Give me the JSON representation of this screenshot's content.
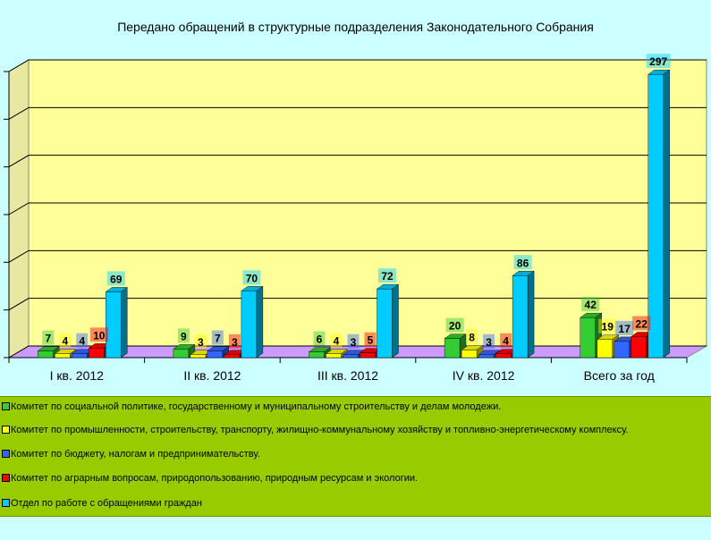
{
  "chart_data": {
    "type": "bar",
    "title": "Передано обращений в структурные подразделения Законодательного Собрания",
    "categories": [
      "I кв. 2012",
      "II кв. 2012",
      "III кв. 2012",
      "IV кв. 2012",
      "Всего за год"
    ],
    "ylim": [
      0,
      300
    ],
    "grid": true,
    "legend_position": "bottom",
    "series": [
      {
        "name": "Комитет по социальной политике, государственному и муниципальному строительству  и делам молодежи.",
        "color": "#33cc33",
        "values": [
          7,
          9,
          6,
          20,
          42
        ]
      },
      {
        "name": "Комитет по промышленности, строительству, транспорту, жилищно-коммунальному хозяйству и топливно-энергетическому комплексу.",
        "color": "#ffff00",
        "values": [
          4,
          3,
          4,
          8,
          19
        ]
      },
      {
        "name": "Комитет по бюджету, налогам и предпринимательству.",
        "color": "#3366ff",
        "values": [
          4,
          7,
          3,
          3,
          17
        ]
      },
      {
        "name": "Комитет по аграрным вопросам, природопользованию, природным ресурсам и  экологии.",
        "color": "#ff0000",
        "values": [
          10,
          3,
          5,
          4,
          22
        ]
      },
      {
        "name": "Отдел по работе с обращениями граждан",
        "color": "#00ccff",
        "values": [
          69,
          70,
          72,
          86,
          297
        ]
      }
    ]
  }
}
